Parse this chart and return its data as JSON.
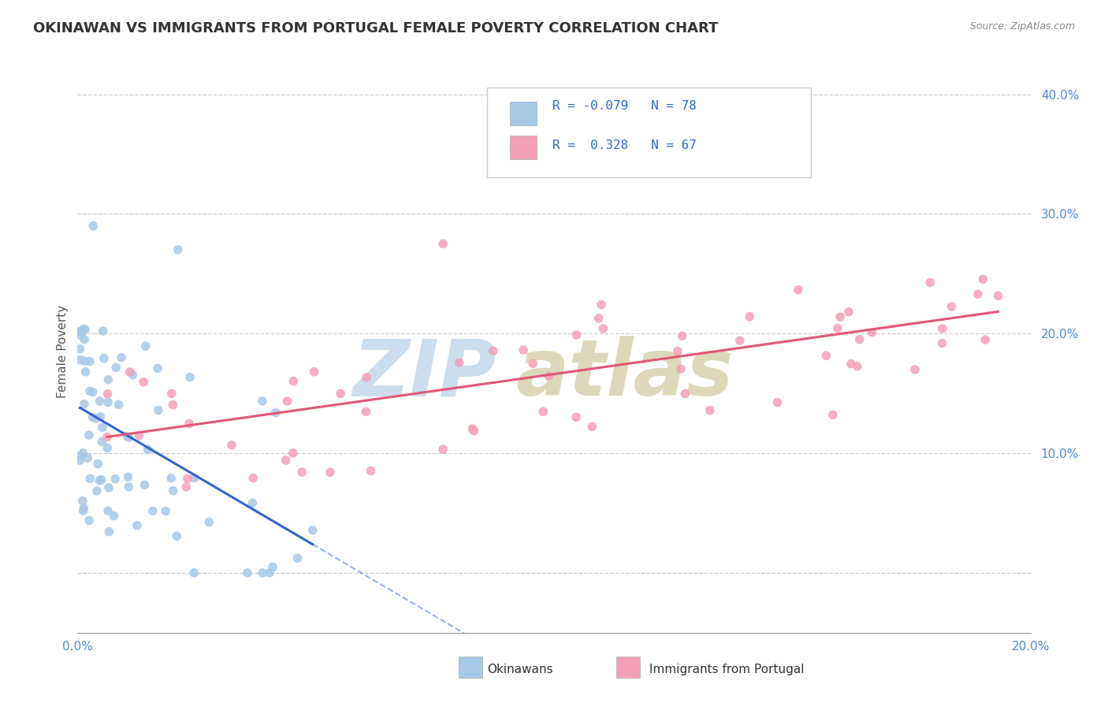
{
  "title": "OKINAWAN VS IMMIGRANTS FROM PORTUGAL FEMALE POVERTY CORRELATION CHART",
  "source": "Source: ZipAtlas.com",
  "ylabel": "Female Poverty",
  "series1_name": "Okinawans",
  "series1_R": -0.079,
  "series1_N": 78,
  "series1_color": "#a8c8e8",
  "series1_line_color": "#3366cc",
  "series2_name": "Immigrants from Portugal",
  "series2_R": 0.328,
  "series2_N": 67,
  "series2_color": "#f4a0b8",
  "series2_line_color": "#e05878",
  "background_color": "#ffffff",
  "xlim": [
    0.0,
    0.2
  ],
  "ylim": [
    -0.05,
    0.42
  ],
  "legend_R_color": "#3366cc",
  "title_color": "#333333",
  "watermark_zip_color": "#ccdded",
  "watermark_atlas_color": "#ddd8bb"
}
